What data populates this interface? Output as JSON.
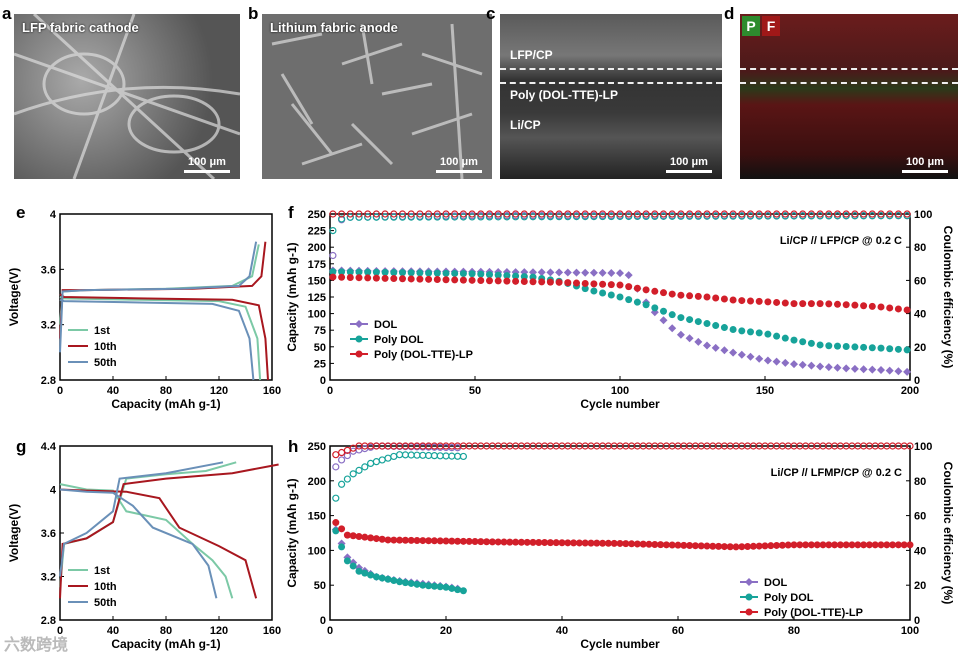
{
  "panels": {
    "a": {
      "label": "a",
      "title": "LFP fabric cathode",
      "scale": "100 μm"
    },
    "b": {
      "label": "b",
      "title": "Lithium fabric anode",
      "scale": "100 μm"
    },
    "c": {
      "label": "c",
      "layers": [
        "LFP/CP",
        "Poly (DOL-TTE)-LP",
        "Li/CP"
      ],
      "scale": "100 μm"
    },
    "d": {
      "label": "d",
      "elements": [
        "P",
        "F"
      ],
      "scale": "100 μm"
    },
    "e": {
      "label": "e"
    },
    "f": {
      "label": "f"
    },
    "g": {
      "label": "g"
    },
    "h": {
      "label": "h"
    }
  },
  "watermark": "六数跨境",
  "colors": {
    "purple": "#8a6fc4",
    "teal": "#17a39a",
    "red": "#d21f2a",
    "green": "#7cc9a6",
    "darkred": "#a8171f",
    "blue": "#6a90b8"
  },
  "chart_data": [
    {
      "id": "e",
      "type": "line",
      "xlabel": "Capacity (mAh g-1)",
      "ylabel": "Voltage(V)",
      "xlim": [
        0,
        160
      ],
      "ylim": [
        2.8,
        4.0
      ],
      "xticks": [
        0,
        40,
        80,
        120,
        160
      ],
      "yticks": [
        2.8,
        3.2,
        3.6,
        4.0
      ],
      "legend": [
        "1st",
        "10th",
        "50th"
      ],
      "series": [
        {
          "name": "1st",
          "color": "green",
          "charge": [
            [
              0,
              3.2
            ],
            [
              2,
              3.44
            ],
            [
              20,
              3.45
            ],
            [
              80,
              3.46
            ],
            [
              130,
              3.48
            ],
            [
              145,
              3.55
            ],
            [
              150,
              3.78
            ]
          ],
          "discharge": [
            [
              0,
              3.4
            ],
            [
              3,
              3.39
            ],
            [
              60,
              3.38
            ],
            [
              120,
              3.37
            ],
            [
              140,
              3.33
            ],
            [
              149,
              3.1
            ],
            [
              151,
              2.8
            ]
          ]
        },
        {
          "name": "10th",
          "color": "darkred",
          "charge": [
            [
              0,
              3.1
            ],
            [
              2,
              3.45
            ],
            [
              20,
              3.45
            ],
            [
              100,
              3.46
            ],
            [
              145,
              3.48
            ],
            [
              152,
              3.55
            ],
            [
              155,
              3.8
            ]
          ],
          "discharge": [
            [
              0,
              3.42
            ],
            [
              3,
              3.4
            ],
            [
              60,
              3.39
            ],
            [
              130,
              3.38
            ],
            [
              150,
              3.34
            ],
            [
              155,
              3.1
            ],
            [
              157,
              2.8
            ]
          ]
        },
        {
          "name": "50th",
          "color": "blue",
          "charge": [
            [
              0,
              3.0
            ],
            [
              2,
              3.44
            ],
            [
              20,
              3.45
            ],
            [
              90,
              3.46
            ],
            [
              135,
              3.48
            ],
            [
              143,
              3.55
            ],
            [
              148,
              3.8
            ]
          ],
          "discharge": [
            [
              0,
              3.38
            ],
            [
              3,
              3.37
            ],
            [
              60,
              3.36
            ],
            [
              115,
              3.35
            ],
            [
              135,
              3.3
            ],
            [
              143,
              3.1
            ],
            [
              146,
              2.8
            ]
          ]
        }
      ]
    },
    {
      "id": "f",
      "type": "scatter",
      "xlabel": "Cycle number",
      "ylabel": "Capacity (mAh g-1)",
      "y2label": "Coulombic efficiency (%)",
      "xlim": [
        0,
        200
      ],
      "ylim": [
        0,
        250
      ],
      "y2lim": [
        0,
        100
      ],
      "xticks": [
        0,
        50,
        100,
        150,
        200
      ],
      "yticks": [
        0,
        25,
        50,
        75,
        100,
        125,
        150,
        175,
        200,
        225,
        250
      ],
      "y2ticks": [
        0,
        20,
        40,
        60,
        80,
        100
      ],
      "annotation": "Li/CP // LFP/CP @ 0.2 C",
      "legend": [
        "DOL",
        "Poly DOL",
        "Poly (DOL-TTE)-LP"
      ],
      "series": [
        {
          "name": "DOL",
          "color": "purple",
          "marker": "diamond",
          "points": [
            [
              1,
              165
            ],
            [
              20,
              164
            ],
            [
              50,
              163
            ],
            [
              80,
              162
            ],
            [
              100,
              161
            ],
            [
              103,
              158
            ],
            [
              110,
              110
            ],
            [
              120,
              70
            ],
            [
              130,
              52
            ],
            [
              140,
              40
            ],
            [
              150,
              30
            ],
            [
              160,
              24
            ],
            [
              170,
              20
            ],
            [
              180,
              17
            ],
            [
              190,
              15
            ],
            [
              200,
              12
            ]
          ]
        },
        {
          "name": "Poly DOL",
          "color": "teal",
          "marker": "circle",
          "points": [
            [
              1,
              163
            ],
            [
              20,
              162
            ],
            [
              50,
              160
            ],
            [
              70,
              155
            ],
            [
              80,
              148
            ],
            [
              90,
              135
            ],
            [
              100,
              125
            ],
            [
              110,
              112
            ],
            [
              120,
              95
            ],
            [
              130,
              85
            ],
            [
              140,
              75
            ],
            [
              150,
              70
            ],
            [
              160,
              60
            ],
            [
              170,
              52
            ],
            [
              180,
              50
            ],
            [
              190,
              48
            ],
            [
              200,
              45
            ]
          ]
        },
        {
          "name": "Poly (DOL-TTE)-LP",
          "color": "red",
          "marker": "circle",
          "points": [
            [
              1,
              155
            ],
            [
              20,
              153
            ],
            [
              50,
              150
            ],
            [
              80,
              147
            ],
            [
              100,
              143
            ],
            [
              110,
              135
            ],
            [
              120,
              128
            ],
            [
              130,
              125
            ],
            [
              140,
              120
            ],
            [
              150,
              118
            ],
            [
              160,
              115
            ],
            [
              170,
              115
            ],
            [
              180,
              113
            ],
            [
              190,
              110
            ],
            [
              200,
              105
            ]
          ]
        }
      ],
      "ce_series": [
        {
          "name": "DOL",
          "color": "purple",
          "points": [
            [
              1,
              75
            ],
            [
              3,
              95
            ],
            [
              5,
              98
            ],
            [
              50,
              99
            ],
            [
              200,
              99
            ]
          ]
        },
        {
          "name": "Poly DOL",
          "color": "teal",
          "points": [
            [
              1,
              90
            ],
            [
              3,
              96
            ],
            [
              5,
              98
            ],
            [
              200,
              99
            ]
          ]
        },
        {
          "name": "Poly (DOL-TTE)-LP",
          "color": "red",
          "points": [
            [
              1,
              100
            ],
            [
              200,
              100
            ]
          ]
        }
      ]
    },
    {
      "id": "g",
      "type": "line",
      "xlabel": "Capacity (mAh g-1)",
      "ylabel": "Voltage(V)",
      "xlim": [
        0,
        160
      ],
      "ylim": [
        2.8,
        4.4
      ],
      "xticks": [
        0,
        40,
        80,
        120,
        160
      ],
      "yticks": [
        2.8,
        3.2,
        3.6,
        4.0,
        4.4
      ],
      "legend": [
        "1st",
        "10th",
        "50th"
      ],
      "series": [
        {
          "name": "1st",
          "color": "green",
          "charge": [
            [
              0,
              3.1
            ],
            [
              3,
              3.5
            ],
            [
              20,
              3.55
            ],
            [
              40,
              3.7
            ],
            [
              50,
              4.1
            ],
            [
              80,
              4.14
            ],
            [
              110,
              4.17
            ],
            [
              133,
              4.25
            ]
          ],
          "discharge": [
            [
              0,
              4.05
            ],
            [
              20,
              4.0
            ],
            [
              40,
              3.99
            ],
            [
              50,
              3.8
            ],
            [
              80,
              3.72
            ],
            [
              100,
              3.5
            ],
            [
              115,
              3.35
            ],
            [
              125,
              3.2
            ],
            [
              130,
              3.0
            ]
          ]
        },
        {
          "name": "10th",
          "color": "darkred",
          "charge": [
            [
              0,
              3.0
            ],
            [
              2,
              3.5
            ],
            [
              20,
              3.55
            ],
            [
              40,
              3.7
            ],
            [
              48,
              4.05
            ],
            [
              80,
              4.1
            ],
            [
              130,
              4.15
            ],
            [
              165,
              4.23
            ]
          ],
          "discharge": [
            [
              0,
              4.0
            ],
            [
              20,
              3.99
            ],
            [
              50,
              3.98
            ],
            [
              75,
              3.92
            ],
            [
              90,
              3.65
            ],
            [
              120,
              3.48
            ],
            [
              140,
              3.35
            ],
            [
              148,
              3.0
            ]
          ]
        },
        {
          "name": "50th",
          "color": "blue",
          "charge": [
            [
              0,
              3.2
            ],
            [
              3,
              3.5
            ],
            [
              20,
              3.6
            ],
            [
              40,
              3.8
            ],
            [
              45,
              4.1
            ],
            [
              80,
              4.15
            ],
            [
              123,
              4.25
            ]
          ],
          "discharge": [
            [
              0,
              4.0
            ],
            [
              20,
              3.98
            ],
            [
              40,
              3.97
            ],
            [
              55,
              3.85
            ],
            [
              70,
              3.65
            ],
            [
              100,
              3.5
            ],
            [
              112,
              3.3
            ],
            [
              118,
              3.0
            ]
          ]
        }
      ]
    },
    {
      "id": "h",
      "type": "scatter",
      "xlabel": "Cycle number",
      "ylabel": "Capacity (mAh g-1)",
      "y2label": "Coulombic efficiency (%)",
      "xlim": [
        0,
        100
      ],
      "ylim": [
        0,
        250
      ],
      "y2lim": [
        0,
        100
      ],
      "xticks": [
        0,
        20,
        40,
        60,
        80,
        100
      ],
      "yticks": [
        0,
        50,
        100,
        150,
        200,
        250
      ],
      "y2ticks": [
        0,
        20,
        40,
        60,
        80,
        100
      ],
      "annotation": "Li/CP // LFMP/CP @ 0.2 C",
      "legend": [
        "DOL",
        "Poly DOL",
        "Poly (DOL-TTE)-LP"
      ],
      "series": [
        {
          "name": "DOL",
          "color": "purple",
          "marker": "diamond",
          "points": [
            [
              1,
              130
            ],
            [
              2,
              110
            ],
            [
              3,
              90
            ],
            [
              5,
              75
            ],
            [
              8,
              62
            ],
            [
              12,
              56
            ],
            [
              16,
              52
            ],
            [
              20,
              48
            ],
            [
              22,
              45
            ]
          ]
        },
        {
          "name": "Poly DOL",
          "color": "teal",
          "marker": "circle",
          "points": [
            [
              1,
              128
            ],
            [
              2,
              105
            ],
            [
              3,
              85
            ],
            [
              5,
              70
            ],
            [
              8,
              62
            ],
            [
              12,
              55
            ],
            [
              16,
              50
            ],
            [
              20,
              47
            ],
            [
              23,
              42
            ]
          ]
        },
        {
          "name": "Poly (DOL-TTE)-LP",
          "color": "red",
          "marker": "circle",
          "points": [
            [
              1,
              140
            ],
            [
              3,
              122
            ],
            [
              10,
              115
            ],
            [
              30,
              112
            ],
            [
              50,
              110
            ],
            [
              70,
              105
            ],
            [
              80,
              108
            ],
            [
              100,
              108
            ]
          ]
        }
      ],
      "ce_series": [
        {
          "name": "DOL",
          "color": "purple",
          "points": [
            [
              1,
              88
            ],
            [
              2,
              92
            ],
            [
              4,
              97
            ],
            [
              8,
              100
            ],
            [
              22,
              99
            ]
          ]
        },
        {
          "name": "Poly DOL",
          "color": "teal",
          "points": [
            [
              1,
              70
            ],
            [
              2,
              78
            ],
            [
              4,
              84
            ],
            [
              7,
              90
            ],
            [
              12,
              95
            ],
            [
              23,
              94
            ]
          ]
        },
        {
          "name": "Poly (DOL-TTE)-LP",
          "color": "red",
          "points": [
            [
              1,
              95
            ],
            [
              5,
              100
            ],
            [
              100,
              100
            ]
          ]
        }
      ]
    }
  ]
}
